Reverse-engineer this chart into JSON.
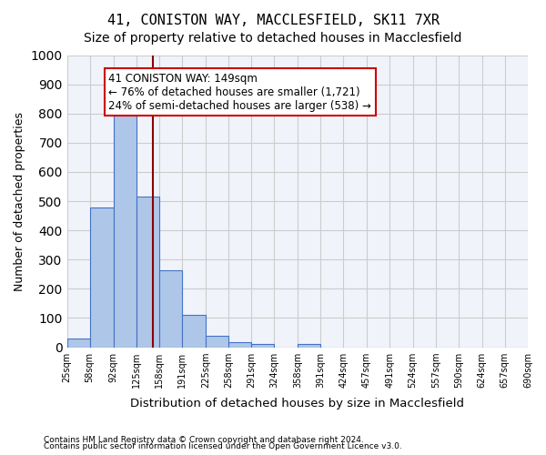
{
  "title_line1": "41, CONISTON WAY, MACCLESFIELD, SK11 7XR",
  "title_line2": "Size of property relative to detached houses in Macclesfield",
  "xlabel": "Distribution of detached houses by size in Macclesfield",
  "ylabel": "Number of detached properties",
  "footnote1": "Contains HM Land Registry data © Crown copyright and database right 2024.",
  "footnote2": "Contains public sector information licensed under the Open Government Licence v3.0.",
  "bar_edges": [
    25,
    58,
    92,
    125,
    158,
    191,
    225,
    258,
    291,
    324,
    358,
    391,
    424,
    457,
    491,
    524,
    557,
    590,
    624,
    657,
    690
  ],
  "bar_heights": [
    30,
    478,
    820,
    515,
    263,
    110,
    38,
    18,
    10,
    0,
    10,
    0,
    0,
    0,
    0,
    0,
    0,
    0,
    0,
    0
  ],
  "bar_color": "#aec6e8",
  "bar_edgecolor": "#4472c4",
  "property_size": 149,
  "vline_color": "#8b0000",
  "annotation_text": "41 CONISTON WAY: 149sqm\n← 76% of detached houses are smaller (1,721)\n24% of semi-detached houses are larger (538) →",
  "annotation_boxcolor": "white",
  "annotation_edgecolor": "#cc0000",
  "ylim": [
    0,
    1000
  ],
  "grid_color": "#cccccc",
  "background_color": "#f0f4fa",
  "title_fontsize": 11,
  "subtitle_fontsize": 10,
  "tick_labels": [
    "25sqm",
    "58sqm",
    "92sqm",
    "125sqm",
    "158sqm",
    "191sqm",
    "225sqm",
    "258sqm",
    "291sqm",
    "324sqm",
    "358sqm",
    "391sqm",
    "424sqm",
    "457sqm",
    "491sqm",
    "524sqm",
    "557sqm",
    "590sqm",
    "624sqm",
    "657sqm",
    "690sqm"
  ]
}
